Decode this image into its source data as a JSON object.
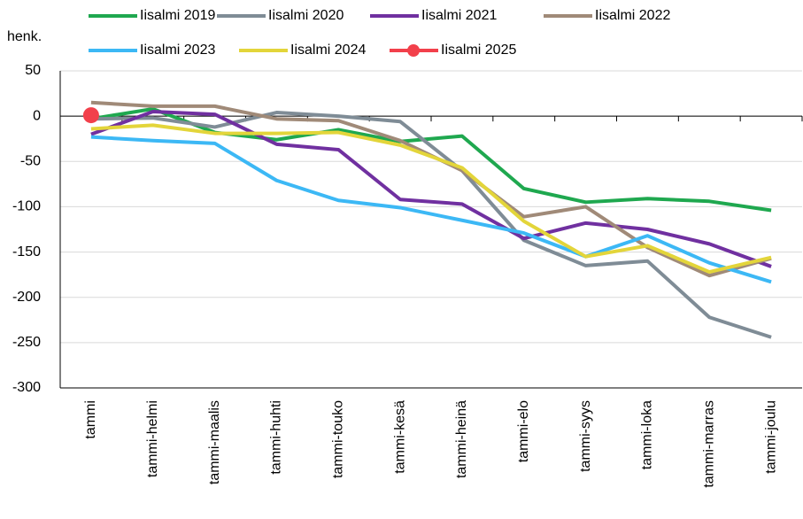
{
  "chart_data": {
    "type": "line",
    "y_label": "henk.",
    "categories": [
      "tammi",
      "tammi-helmi",
      "tammi-maalis",
      "tammi-huhti",
      "tammi-touko",
      "tammi-kesä",
      "tammi-heinä",
      "tammi-elo",
      "tammi-syys",
      "tammi-loka",
      "tammi-marras",
      "tammi-joulu"
    ],
    "series": [
      {
        "name": "Iisalmi 2019",
        "color": "#1fa84f",
        "values": [
          -3,
          8,
          -18,
          -26,
          -15,
          -28,
          -22,
          -80,
          -95,
          -91,
          -94,
          -104
        ]
      },
      {
        "name": "Iisalmi 2020",
        "color": "#7f8c96",
        "values": [
          -3,
          -2,
          -12,
          4,
          0,
          -6,
          -60,
          -137,
          -165,
          -160,
          -222,
          -244
        ]
      },
      {
        "name": "Iisalmi 2021",
        "color": "#7030a0",
        "values": [
          -20,
          5,
          2,
          -31,
          -37,
          -92,
          -97,
          -135,
          -118,
          -125,
          -141,
          -166
        ]
      },
      {
        "name": "Iisalmi 2022",
        "color": "#a08a78",
        "values": [
          15,
          11,
          11,
          -3,
          -5,
          -27,
          -60,
          -111,
          -100,
          -145,
          -176,
          -157
        ]
      },
      {
        "name": "Iisalmi 2023",
        "color": "#3cb8f5",
        "values": [
          -23,
          -27,
          -30,
          -71,
          -93,
          -101,
          -115,
          -129,
          -155,
          -132,
          -162,
          -183
        ]
      },
      {
        "name": "Iisalmi 2024",
        "color": "#e3d53a",
        "values": [
          -14,
          -10,
          -19,
          -19,
          -18,
          -32,
          -57,
          -116,
          -155,
          -143,
          -172,
          -156
        ]
      },
      {
        "name": "Iisalmi 2025",
        "color": "#f2404b",
        "marker": true,
        "values": [
          1,
          null,
          null,
          null,
          null,
          null,
          null,
          null,
          null,
          null,
          null,
          null
        ]
      }
    ],
    "ylim": [
      -300,
      50
    ],
    "yticks": [
      -300,
      -250,
      -200,
      -150,
      -100,
      -50,
      0,
      50
    ],
    "grid": true
  }
}
